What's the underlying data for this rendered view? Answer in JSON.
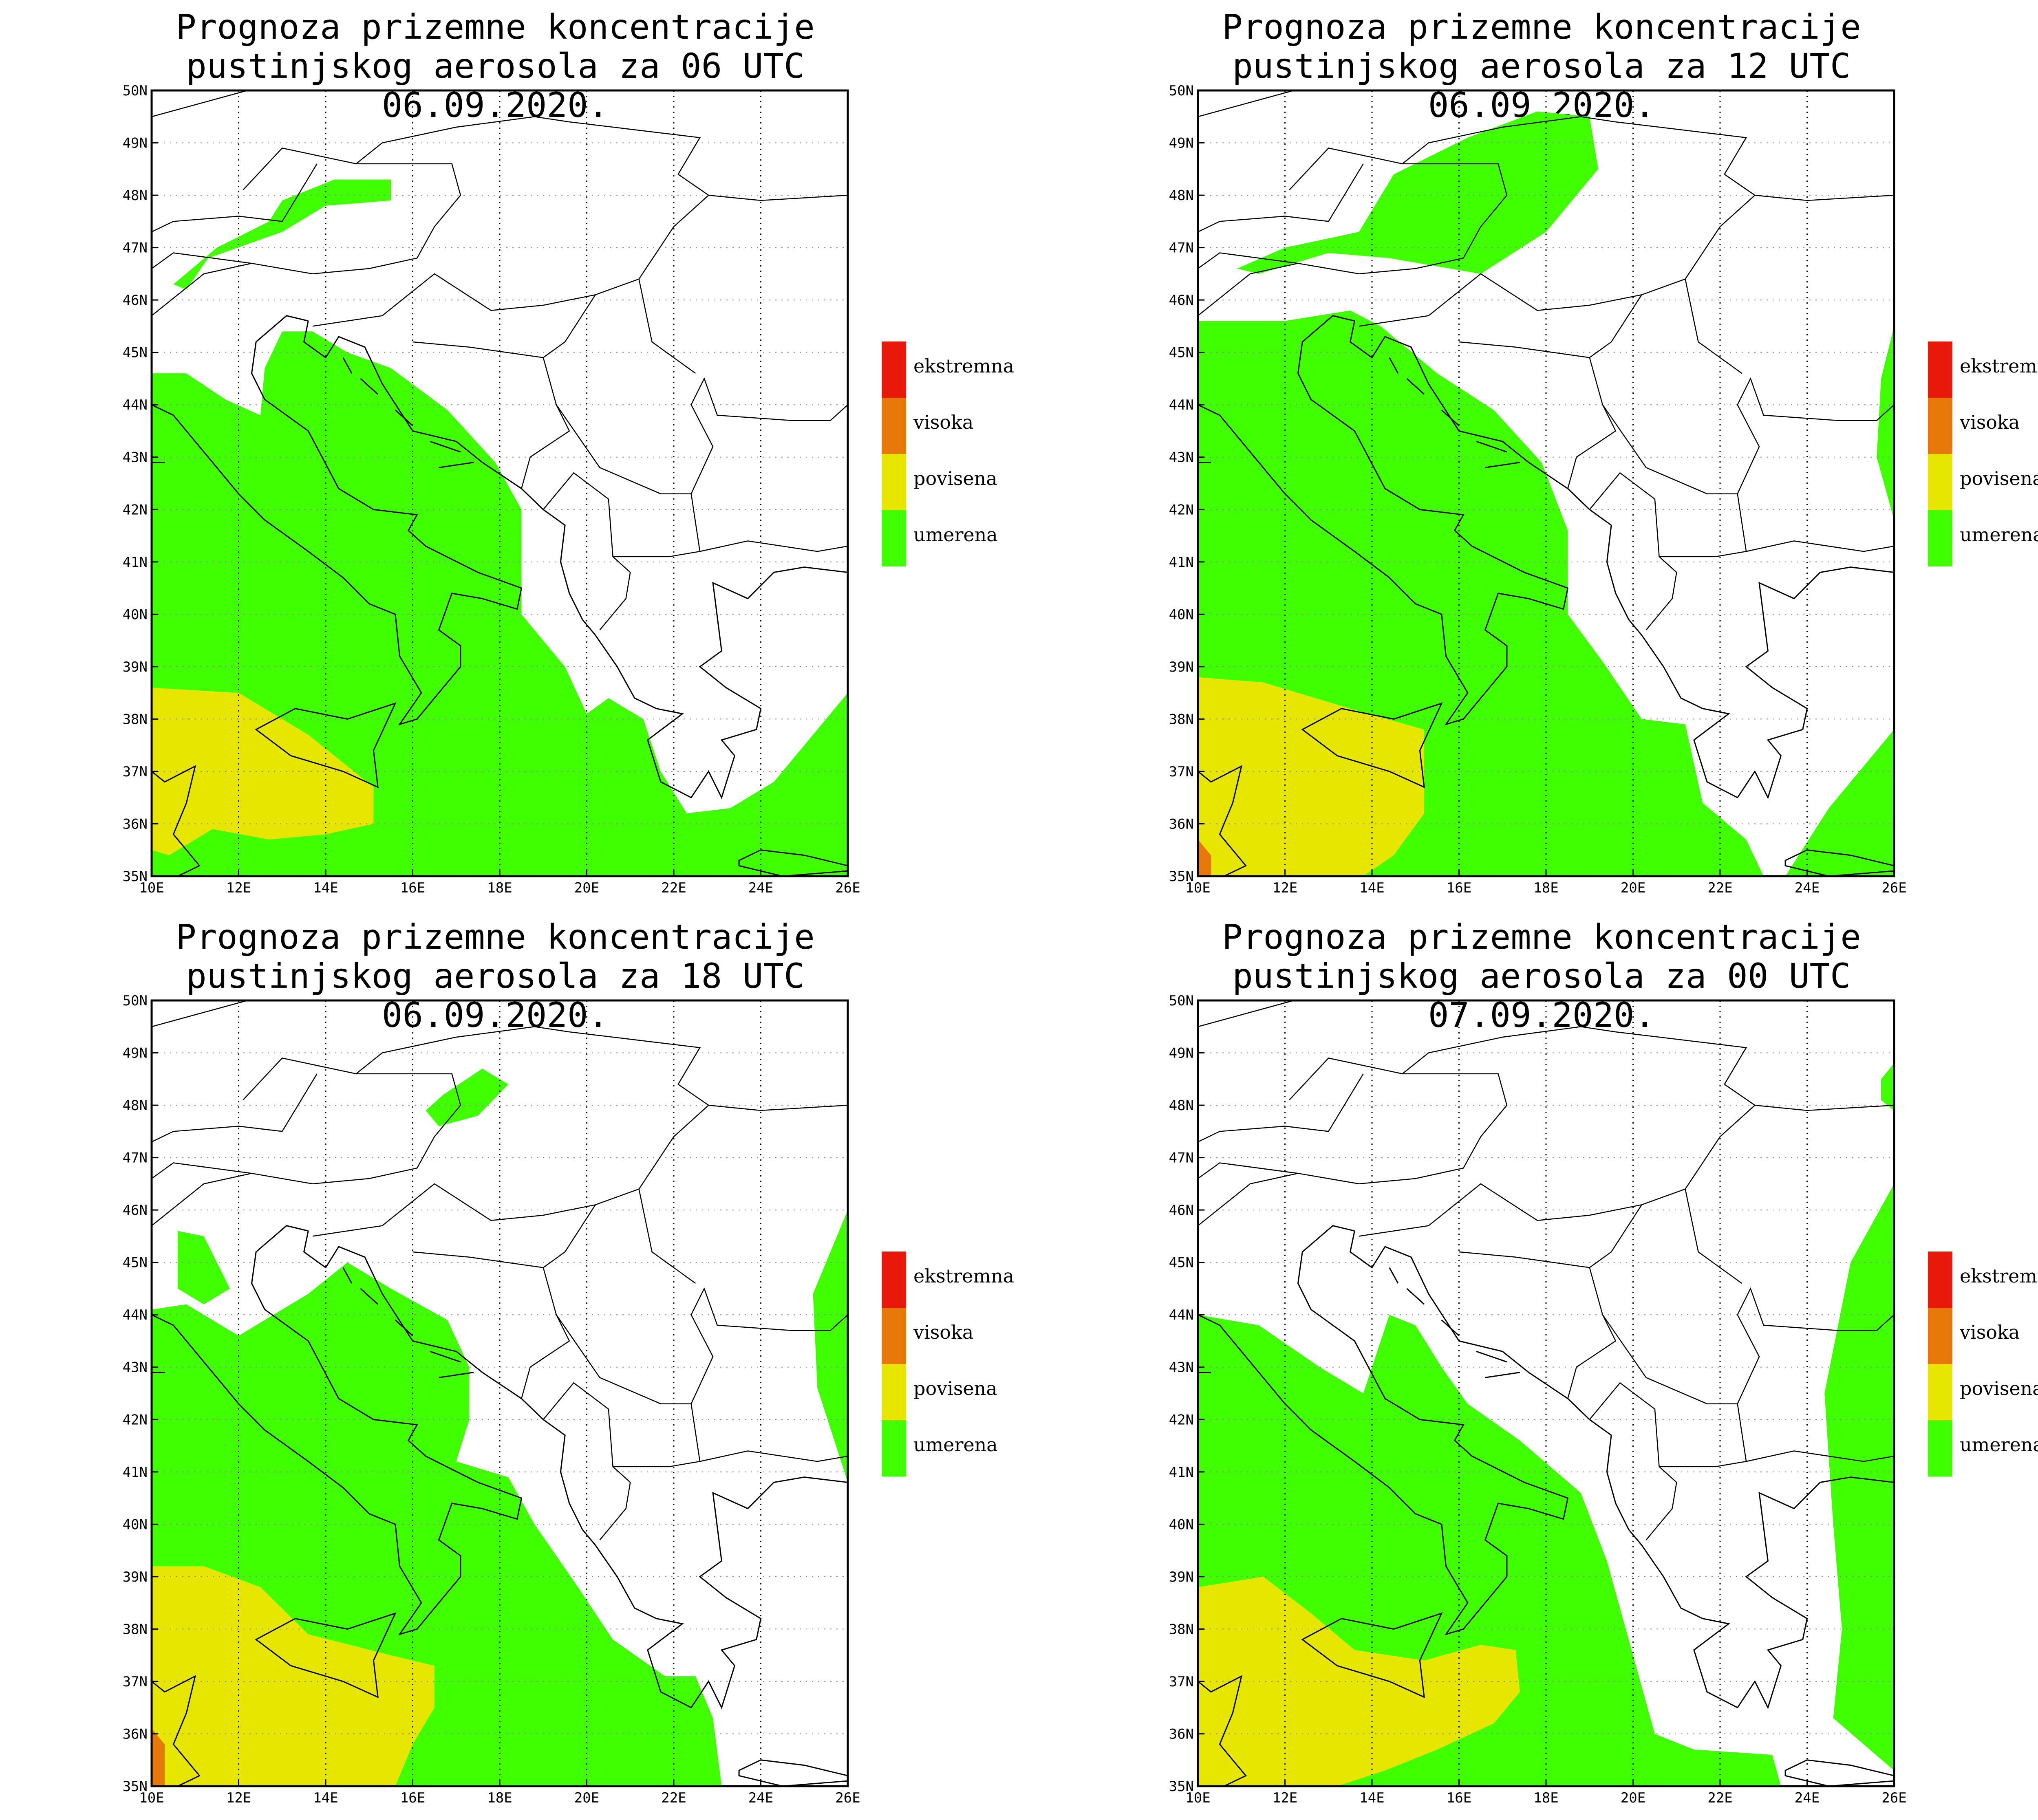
{
  "panels": [
    {
      "title_line1": "Prognoza prizemne koncentracije",
      "title_line2": "pustinjskog aerosola za 06 UTC 06.09.2020."
    },
    {
      "title_line1": "Prognoza prizemne koncentracije",
      "title_line2": "pustinjskog aerosola za 12 UTC 06.09.2020."
    },
    {
      "title_line1": "Prognoza prizemne koncentracije",
      "title_line2": "pustinjskog aerosola za 18 UTC 06.09.2020."
    },
    {
      "title_line1": "Prognoza prizemne koncentracije",
      "title_line2": "pustinjskog aerosola za 00 UTC 07.09.2020."
    }
  ],
  "axes": {
    "lat_labels": [
      "50N",
      "49N",
      "48N",
      "47N",
      "46N",
      "45N",
      "44N",
      "43N",
      "42N",
      "41N",
      "40N",
      "39N",
      "38N",
      "37N",
      "36N",
      "35N"
    ],
    "lon_labels": [
      "10E",
      "12E",
      "14E",
      "16E",
      "18E",
      "20E",
      "22E",
      "24E",
      "26E"
    ]
  },
  "legend": [
    {
      "label": "ekstremna",
      "color": "#e8180a"
    },
    {
      "label": "visoka",
      "color": "#e8780a"
    },
    {
      "label": "povisena",
      "color": "#e6e600"
    },
    {
      "label": "umerena",
      "color": "#40ff00"
    }
  ],
  "colors": {
    "umerena": "#40ff00",
    "povisena": "#e6e600",
    "visoka": "#e8780a",
    "border": "#000000"
  }
}
